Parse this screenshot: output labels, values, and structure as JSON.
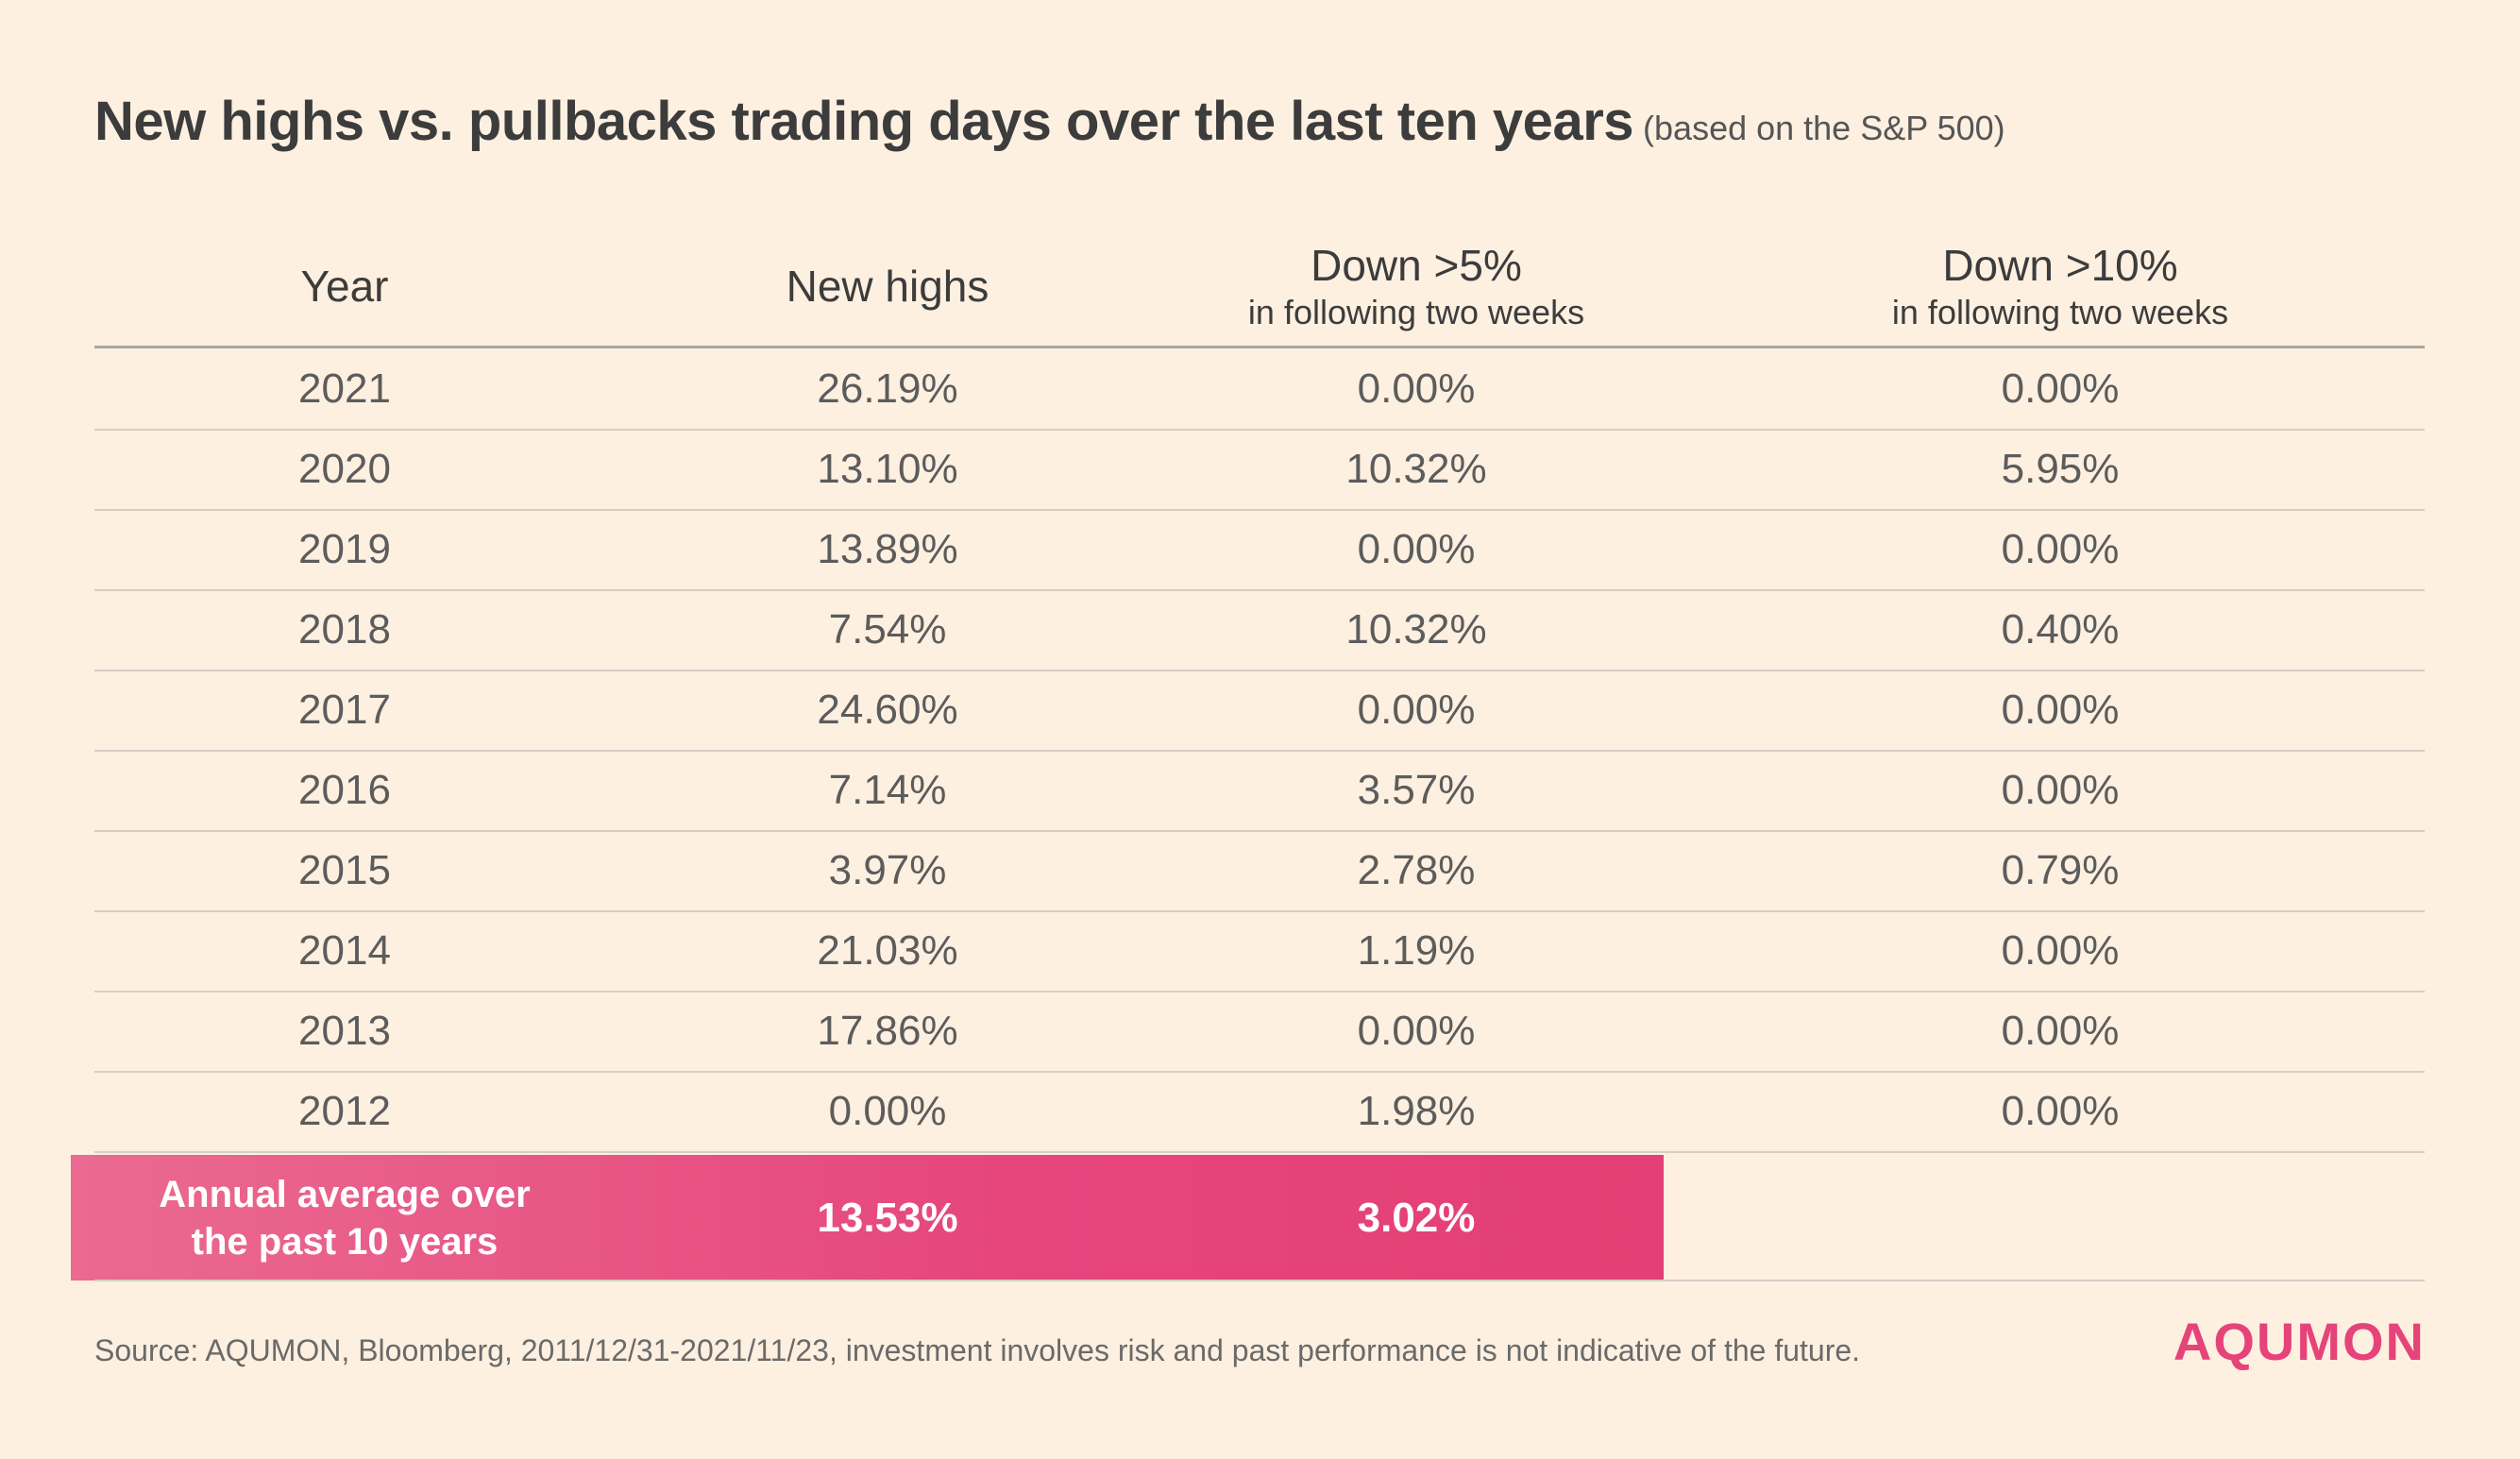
{
  "title": "New highs vs. pullbacks trading days over the last ten years",
  "subtitle": "(based on the S&P 500)",
  "chart_data": {
    "type": "table",
    "columns": [
      {
        "main": "Year",
        "sub": ""
      },
      {
        "main": "New highs",
        "sub": ""
      },
      {
        "main": "Down >5%",
        "sub": "in following two weeks"
      },
      {
        "main": "Down >10%",
        "sub": "in following two weeks"
      }
    ],
    "rows": [
      [
        "2021",
        "26.19%",
        "0.00%",
        "0.00%"
      ],
      [
        "2020",
        "13.10%",
        "10.32%",
        "5.95%"
      ],
      [
        "2019",
        "13.89%",
        "0.00%",
        "0.00%"
      ],
      [
        "2018",
        "7.54%",
        "10.32%",
        "0.40%"
      ],
      [
        "2017",
        "24.60%",
        "0.00%",
        "0.00%"
      ],
      [
        "2016",
        "7.14%",
        "3.57%",
        "0.00%"
      ],
      [
        "2015",
        "3.97%",
        "2.78%",
        "0.79%"
      ],
      [
        "2014",
        "21.03%",
        "1.19%",
        "0.00%"
      ],
      [
        "2013",
        "17.86%",
        "0.00%",
        "0.00%"
      ],
      [
        "2012",
        "0.00%",
        "1.98%",
        "0.00%"
      ]
    ],
    "average": {
      "label_line1": "Annual average over",
      "label_line2": "the past 10 years",
      "new_highs": "13.53%",
      "down_5": "3.02%"
    }
  },
  "accent_color": "#e6437a",
  "source": "Source: AQUMON, Bloomberg, 2011/12/31-2021/11/23, investment involves risk and past performance is not indicative of the future.",
  "logo": "AQUMON"
}
